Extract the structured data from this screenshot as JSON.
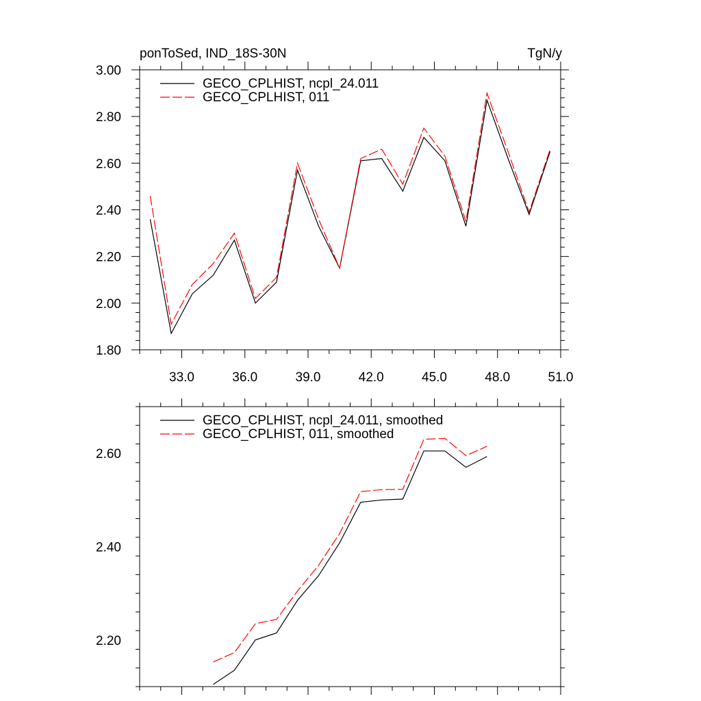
{
  "chart_data": [
    {
      "type": "line",
      "title_left": "ponToSed, IND_18S-30N",
      "title_right": "TgN/y",
      "xlim": [
        31,
        51
      ],
      "ylim": [
        1.8,
        3.0
      ],
      "x_ticks": [
        33,
        36,
        39,
        42,
        45,
        48,
        51
      ],
      "x_tick_labels": [
        "33.0",
        "36.0",
        "39.0",
        "42.0",
        "45.0",
        "48.0",
        "51.0"
      ],
      "y_ticks": [
        1.8,
        2.0,
        2.2,
        2.4,
        2.6,
        2.8,
        3.0
      ],
      "y_tick_labels": [
        "1.80",
        "2.00",
        "2.20",
        "2.40",
        "2.60",
        "2.80",
        "3.00"
      ],
      "legend": "top-left",
      "x": [
        31.5,
        32.5,
        33.5,
        34.5,
        35.5,
        36.5,
        37.5,
        38.5,
        39.5,
        40.5,
        41.5,
        42.5,
        43.5,
        44.5,
        45.5,
        46.5,
        47.5,
        48.5,
        49.5,
        50.5
      ],
      "series": [
        {
          "name": "GECO_CPLHIST, ncpl_24.011",
          "color": "#000000",
          "dash": "solid",
          "values": [
            2.36,
            1.87,
            2.04,
            2.12,
            2.27,
            2.0,
            2.09,
            2.57,
            2.33,
            2.15,
            2.61,
            2.62,
            2.48,
            2.71,
            2.61,
            2.33,
            2.87,
            2.62,
            2.38,
            2.65
          ]
        },
        {
          "name": "GECO_CPLHIST, 011",
          "color": "#ff0000",
          "dash": "dashed",
          "values": [
            2.46,
            1.91,
            2.08,
            2.17,
            2.3,
            2.02,
            2.11,
            2.6,
            2.36,
            2.15,
            2.62,
            2.66,
            2.51,
            2.75,
            2.63,
            2.35,
            2.9,
            2.65,
            2.39,
            2.66
          ]
        }
      ]
    },
    {
      "type": "line",
      "xlim": [
        31,
        51
      ],
      "ylim": [
        2.1,
        2.7
      ],
      "x_ticks": [
        33,
        36,
        39,
        42,
        45,
        48,
        51
      ],
      "y_ticks": [
        2.2,
        2.4,
        2.6
      ],
      "y_tick_labels": [
        "2.20",
        "2.40",
        "2.60"
      ],
      "legend": "top-left",
      "x": [
        34.5,
        35.5,
        36.5,
        37.5,
        38.5,
        39.5,
        40.5,
        41.5,
        42.5,
        43.5,
        44.5,
        45.5,
        46.5,
        47.5
      ],
      "series": [
        {
          "name": "GECO_CPLHIST, ncpl_24.011, smoothed",
          "color": "#000000",
          "dash": "solid",
          "values": [
            2.105,
            2.135,
            2.2,
            2.215,
            2.285,
            2.338,
            2.408,
            2.495,
            2.5,
            2.502,
            2.605,
            2.605,
            2.57,
            2.593
          ]
        },
        {
          "name": "GECO_CPLHIST, 011, smoothed",
          "color": "#ff0000",
          "dash": "dashed",
          "values": [
            2.153,
            2.173,
            2.235,
            2.244,
            2.305,
            2.36,
            2.428,
            2.518,
            2.522,
            2.523,
            2.63,
            2.632,
            2.595,
            2.615
          ]
        }
      ]
    }
  ]
}
